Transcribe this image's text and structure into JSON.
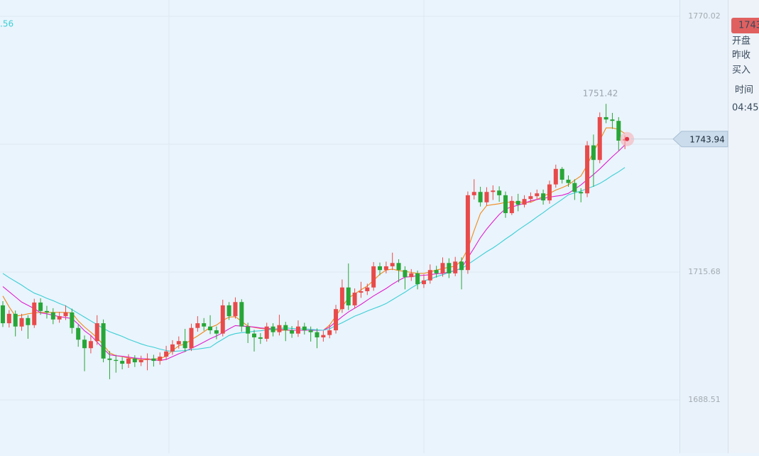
{
  "chart_data": {
    "type": "candlestick",
    "ylim": [
      1677.19,
      1773.49
    ],
    "yticks": [
      1770.02,
      1742.85,
      1715.68,
      1688.51
    ],
    "grid": true,
    "up_color": "#e84a4a",
    "down_color": "#27a637",
    "open": [
      1708.6,
      1704.8,
      1706.8,
      1704.1,
      1705.9,
      1704.4,
      1709.2,
      1707.4,
      1707.1,
      1705.6,
      1706.3,
      1707.1,
      1703.8,
      1701.3,
      1699.5,
      1701.0,
      1704.8,
      1697.3,
      1697.0,
      1696.8,
      1696.2,
      1697.3,
      1696.5,
      1697.0,
      1697.3,
      1696.8,
      1697.7,
      1698.8,
      1700.3,
      1701.0,
      1699.5,
      1703.8,
      1704.8,
      1704.1,
      1703.3,
      1702.6,
      1708.6,
      1706.3,
      1709.3,
      1704.1,
      1702.6,
      1701.8,
      1701.5,
      1704.1,
      1702.9,
      1704.4,
      1703.3,
      1702.6,
      1704.1,
      1703.3,
      1702.9,
      1701.8,
      1702.3,
      1703.3,
      1707.8,
      1712.4,
      1708.6,
      1711.3,
      1711.6,
      1712.4,
      1716.9,
      1716.1,
      1716.9,
      1717.6,
      1716.1,
      1714.6,
      1715.4,
      1713.1,
      1713.9,
      1716.1,
      1715.4,
      1717.6,
      1715.4,
      1717.9,
      1716.1,
      1732.0,
      1732.7,
      1730.5,
      1732.7,
      1733.0,
      1732.0,
      1728.2,
      1730.8,
      1730.0,
      1731.2,
      1731.8,
      1732.4,
      1730.9,
      1734.3,
      1737.6,
      1735.3,
      1734.6,
      1732.7,
      1732.4,
      1742.6,
      1739.5,
      1748.6,
      1748.1,
      1747.8,
      1743.6
    ],
    "high": [
      1709.5,
      1707.6,
      1707.5,
      1706.8,
      1706.5,
      1710.0,
      1710.1,
      1708.5,
      1708.0,
      1707.2,
      1708.6,
      1707.9,
      1704.5,
      1702.2,
      1702.3,
      1706.5,
      1705.6,
      1698.9,
      1698.1,
      1697.6,
      1698.2,
      1698.0,
      1697.9,
      1698.4,
      1698.1,
      1698.6,
      1700.0,
      1701.2,
      1702.0,
      1703.6,
      1704.7,
      1706.3,
      1705.9,
      1706.5,
      1704.1,
      1709.8,
      1709.3,
      1710.3,
      1709.9,
      1704.9,
      1703.4,
      1702.7,
      1704.9,
      1704.8,
      1706.6,
      1705.1,
      1704.2,
      1705.4,
      1704.9,
      1704.1,
      1703.7,
      1703.2,
      1704.5,
      1708.7,
      1714.1,
      1717.5,
      1712.2,
      1713.6,
      1713.2,
      1717.8,
      1717.7,
      1717.9,
      1719.8,
      1718.4,
      1716.9,
      1716.3,
      1716.0,
      1715.2,
      1717.3,
      1717.0,
      1718.8,
      1718.6,
      1718.9,
      1718.8,
      1732.8,
      1735.4,
      1733.8,
      1733.7,
      1734.1,
      1733.9,
      1732.8,
      1731.8,
      1732.3,
      1732.0,
      1732.6,
      1733.2,
      1733.2,
      1735.1,
      1738.5,
      1738.0,
      1736.2,
      1735.4,
      1733.5,
      1743.5,
      1744.9,
      1749.6,
      1751.42,
      1749.5,
      1748.6,
      1744.7
    ],
    "low": [
      1704.0,
      1703.9,
      1702.0,
      1703.2,
      1701.5,
      1703.8,
      1706.6,
      1705.8,
      1704.6,
      1704.9,
      1705.5,
      1702.6,
      1699.8,
      1694.6,
      1698.4,
      1700.2,
      1696.5,
      1692.9,
      1694.3,
      1695.0,
      1695.3,
      1695.5,
      1695.7,
      1694.8,
      1695.6,
      1696.0,
      1697.0,
      1698.1,
      1699.4,
      1698.7,
      1698.9,
      1703.0,
      1703.2,
      1702.5,
      1701.4,
      1702.0,
      1705.5,
      1705.8,
      1703.0,
      1700.6,
      1698.8,
      1700.4,
      1700.9,
      1702.0,
      1702.2,
      1701.0,
      1701.7,
      1701.9,
      1702.4,
      1700.9,
      1699.5,
      1700.9,
      1701.6,
      1702.6,
      1707.0,
      1707.6,
      1707.9,
      1710.2,
      1710.8,
      1711.7,
      1715.0,
      1715.4,
      1716.1,
      1713.5,
      1712.0,
      1713.8,
      1712.0,
      1712.3,
      1713.2,
      1714.5,
      1714.7,
      1714.4,
      1714.8,
      1712.0,
      1715.3,
      1731.1,
      1729.6,
      1729.8,
      1731.0,
      1730.6,
      1727.2,
      1727.8,
      1728.6,
      1729.4,
      1730.5,
      1731.0,
      1730.0,
      1730.2,
      1733.6,
      1734.5,
      1733.8,
      1731.0,
      1730.5,
      1731.6,
      1733.8,
      1738.8,
      1747.3,
      1746.1,
      1741.5,
      1741.8
    ],
    "close": [
      1704.8,
      1706.8,
      1704.1,
      1705.9,
      1704.4,
      1709.2,
      1707.4,
      1707.1,
      1705.6,
      1706.3,
      1707.1,
      1703.8,
      1701.3,
      1699.5,
      1701.0,
      1704.8,
      1697.3,
      1697.0,
      1696.8,
      1696.2,
      1697.3,
      1696.5,
      1697.0,
      1697.3,
      1696.8,
      1697.7,
      1698.8,
      1700.3,
      1701.0,
      1699.5,
      1703.8,
      1704.8,
      1704.1,
      1703.3,
      1702.6,
      1708.6,
      1706.3,
      1709.3,
      1704.1,
      1702.6,
      1701.8,
      1701.5,
      1704.1,
      1702.9,
      1704.4,
      1703.3,
      1702.6,
      1704.1,
      1703.3,
      1702.9,
      1701.8,
      1702.3,
      1703.3,
      1707.8,
      1712.4,
      1708.6,
      1711.3,
      1711.6,
      1712.4,
      1716.9,
      1716.1,
      1716.9,
      1717.6,
      1716.1,
      1714.6,
      1715.4,
      1713.1,
      1713.9,
      1716.1,
      1715.4,
      1717.6,
      1715.4,
      1717.9,
      1716.1,
      1732.0,
      1732.7,
      1730.5,
      1732.7,
      1733.0,
      1732.0,
      1728.2,
      1730.8,
      1730.0,
      1731.2,
      1731.8,
      1732.4,
      1730.9,
      1734.3,
      1737.6,
      1735.3,
      1734.6,
      1732.7,
      1732.4,
      1742.6,
      1739.5,
      1748.6,
      1748.1,
      1747.8,
      1743.6,
      1743.94
    ],
    "ma_lines": [
      {
        "color": "#f08a1c",
        "values": [
          1710.6,
          1708.3,
          1706.3,
          1706.5,
          1706.8,
          1707.0,
          1707.1,
          1707.1,
          1707.1,
          1707.1,
          1707.1,
          1707.0,
          1705.3,
          1704.0,
          1702.9,
          1701.7,
          1700.2,
          1698.5,
          1697.9,
          1697.7,
          1697.4,
          1697.2,
          1697.0,
          1697.1,
          1697.2,
          1697.3,
          1697.8,
          1699.0,
          1700.0,
          1700.4,
          1701.3,
          1702.1,
          1703.0,
          1703.9,
          1704.4,
          1705.4,
          1706.1,
          1706.2,
          1705.2,
          1704.2,
          1703.9,
          1703.7,
          1703.6,
          1703.4,
          1703.3,
          1703.3,
          1703.3,
          1703.3,
          1703.3,
          1703.3,
          1703.3,
          1703.3,
          1704.4,
          1706.3,
          1708.3,
          1710.2,
          1711.0,
          1711.9,
          1712.7,
          1713.9,
          1715.2,
          1716.1,
          1716.3,
          1716.0,
          1715.8,
          1715.6,
          1715.4,
          1715.4,
          1715.7,
          1716.1,
          1716.4,
          1716.7,
          1716.9,
          1718.1,
          1720.6,
          1724.5,
          1728.1,
          1729.8,
          1730.0,
          1730.2,
          1730.5,
          1730.5,
          1730.5,
          1730.5,
          1730.5,
          1731.1,
          1731.8,
          1732.4,
          1733.1,
          1733.6,
          1734.2,
          1735.2,
          1736.1,
          1738.4,
          1741.3,
          1743.7,
          1746.3,
          1746.3,
          1746.0,
          1745.1
        ]
      },
      {
        "color": "#e020d0",
        "values": [
          1712.6,
          1711.5,
          1710.4,
          1709.3,
          1708.6,
          1707.9,
          1707.0,
          1706.8,
          1706.5,
          1706.2,
          1706.0,
          1705.8,
          1704.6,
          1703.2,
          1702.2,
          1700.8,
          1699.4,
          1698.1,
          1697.9,
          1697.8,
          1697.6,
          1697.4,
          1697.3,
          1697.2,
          1697.0,
          1696.9,
          1697.1,
          1697.7,
          1698.3,
          1698.8,
          1699.5,
          1700.1,
          1700.8,
          1701.5,
          1702.1,
          1702.8,
          1703.6,
          1704.3,
          1704.2,
          1704.1,
          1704.0,
          1703.8,
          1703.7,
          1703.6,
          1703.5,
          1703.4,
          1703.3,
          1703.3,
          1703.3,
          1703.3,
          1703.3,
          1703.3,
          1704.0,
          1705.1,
          1706.2,
          1707.2,
          1708.0,
          1708.8,
          1709.7,
          1710.6,
          1711.4,
          1712.2,
          1713.1,
          1713.9,
          1714.6,
          1714.7,
          1714.9,
          1715.0,
          1715.1,
          1715.3,
          1715.4,
          1715.7,
          1716.0,
          1716.5,
          1718.7,
          1720.8,
          1723.0,
          1724.8,
          1726.4,
          1727.9,
          1729.1,
          1729.5,
          1729.9,
          1730.3,
          1730.8,
          1731.1,
          1731.3,
          1731.6,
          1731.8,
          1732.0,
          1732.4,
          1733.3,
          1734.2,
          1735.3,
          1736.4,
          1737.6,
          1738.9,
          1740.2,
          1741.4,
          1742.7
        ]
      },
      {
        "color": "#3ccfd6",
        "values": [
          1715.4,
          1714.5,
          1713.7,
          1712.9,
          1712.0,
          1711.2,
          1710.7,
          1710.1,
          1709.6,
          1709.0,
          1708.5,
          1707.7,
          1706.9,
          1706.1,
          1705.3,
          1704.5,
          1703.7,
          1703.0,
          1702.5,
          1702.0,
          1701.4,
          1700.9,
          1700.4,
          1700.0,
          1699.7,
          1699.3,
          1699.0,
          1698.8,
          1698.9,
          1699.0,
          1699.2,
          1699.3,
          1699.5,
          1699.7,
          1700.6,
          1701.4,
          1702.2,
          1702.6,
          1702.8,
          1702.9,
          1703.1,
          1703.2,
          1703.4,
          1703.5,
          1703.7,
          1703.8,
          1703.7,
          1703.6,
          1703.6,
          1703.5,
          1703.4,
          1703.3,
          1703.6,
          1704.3,
          1704.9,
          1705.6,
          1706.3,
          1706.8,
          1707.4,
          1707.9,
          1708.4,
          1709.0,
          1709.8,
          1710.6,
          1711.4,
          1712.3,
          1713.1,
          1713.8,
          1714.2,
          1714.7,
          1715.1,
          1715.6,
          1716.0,
          1716.4,
          1717.3,
          1718.2,
          1719.1,
          1720.0,
          1720.8,
          1721.7,
          1722.7,
          1723.6,
          1724.6,
          1725.5,
          1726.4,
          1727.4,
          1728.3,
          1729.3,
          1730.2,
          1731.1,
          1732.1,
          1732.5,
          1732.9,
          1733.4,
          1733.9,
          1734.5,
          1735.3,
          1736.2,
          1737.0,
          1737.9
        ]
      }
    ],
    "ma_label": ".56"
  },
  "right_panel": {
    "price": "1743",
    "labels": [
      "开盘",
      "昨收",
      "买入"
    ],
    "time_label": "时间",
    "time": "04:45"
  }
}
